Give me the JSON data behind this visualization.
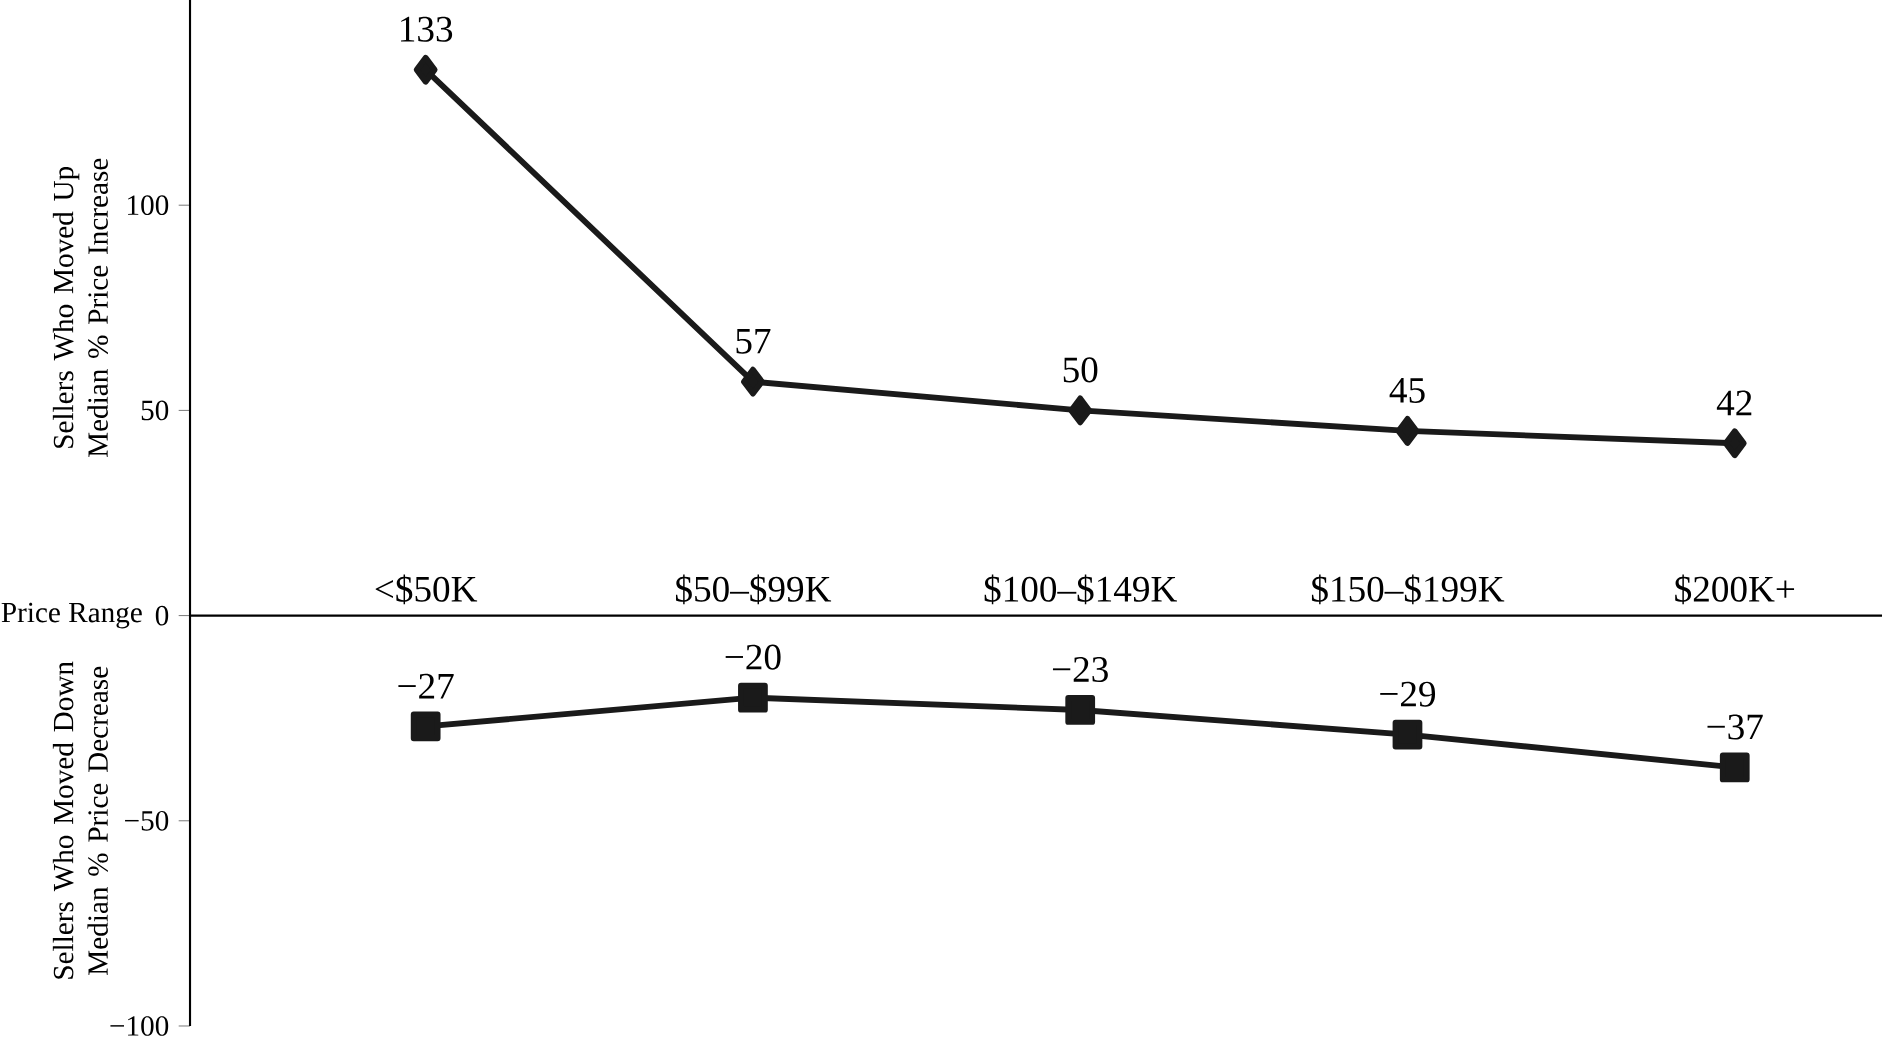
{
  "chart_data": {
    "type": "line",
    "categories": [
      "<$50K",
      "$50–$99K",
      "$100–$149K",
      "$150–$199K",
      "$200K+"
    ],
    "series": [
      {
        "color": "#1a1a1a",
        "marker": "diamond",
        "values": [
          133,
          57,
          50,
          45,
          42
        ],
        "value_labels": [
          "133",
          "57",
          "50",
          "45",
          "42"
        ]
      },
      {
        "color": "#1a1a1a",
        "marker": "square",
        "values": [
          -27,
          -20,
          -23,
          -29,
          -37
        ],
        "value_labels": [
          "−27",
          "−20",
          "−23",
          "−29",
          "−37"
        ]
      }
    ],
    "ylabel": "Sellers Who Moved Up Median % Price Increase",
    "annotations": [
      "Sellers Who Moved Down Median % Price Decrease",
      "Price Range"
    ],
    "ylim": [
      -100,
      150
    ],
    "yticks": [
      {
        "value": -100,
        "label": "−100"
      },
      {
        "value": -50,
        "label": "−50"
      },
      0,
      50,
      100
    ],
    "line_style": "solid"
  }
}
